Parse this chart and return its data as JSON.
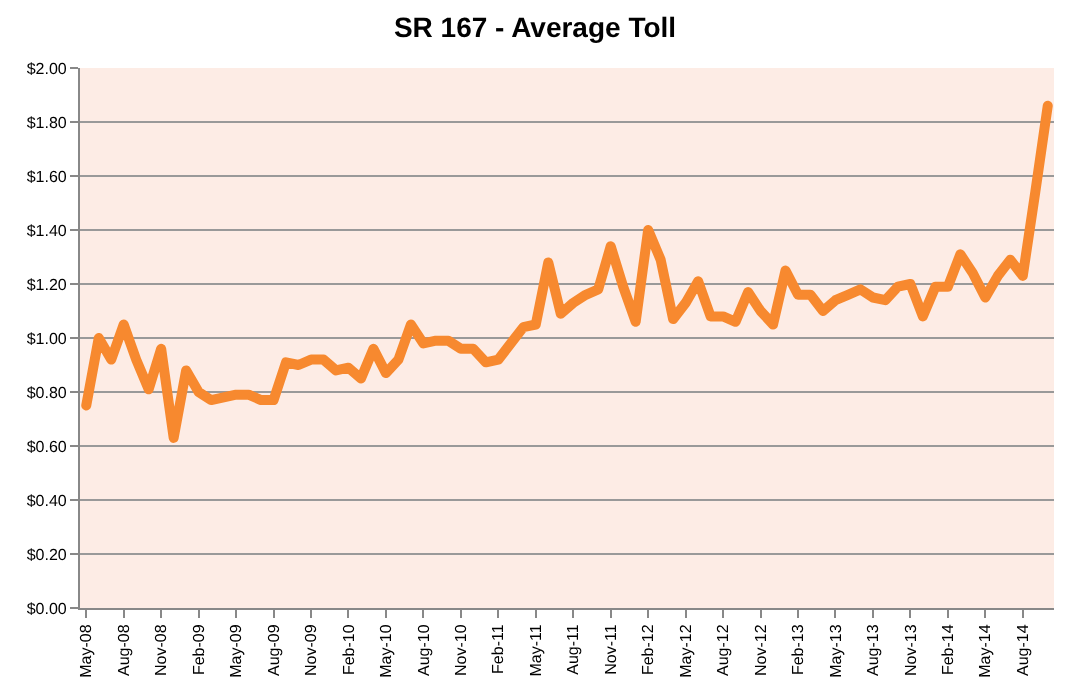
{
  "chart_data": {
    "type": "line",
    "title": "SR 167 - Average Toll",
    "categories": [
      "May-08",
      null,
      null,
      "Aug-08",
      null,
      null,
      "Nov-08",
      null,
      null,
      "Feb-09",
      null,
      null,
      "May-09",
      null,
      null,
      "Aug-09",
      null,
      null,
      "Nov-09",
      null,
      null,
      "Feb-10",
      null,
      null,
      "May-10",
      null,
      null,
      "Aug-10",
      null,
      null,
      "Nov-10",
      null,
      null,
      "Feb-11",
      null,
      null,
      "May-11",
      null,
      null,
      "Aug-11",
      null,
      null,
      "Nov-11",
      null,
      null,
      "Feb-12",
      null,
      null,
      "May-12",
      null,
      null,
      "Aug-12",
      null,
      null,
      "Nov-12",
      null,
      null,
      "Feb-13",
      null,
      null,
      "May-13",
      null,
      null,
      "Aug-13",
      null,
      null,
      "Nov-13",
      null,
      null,
      "Feb-14",
      null,
      null,
      "May-14",
      null,
      null,
      "Aug-14",
      null,
      null
    ],
    "series": [
      {
        "color": "#f7892f",
        "values": [
          0.75,
          1.0,
          0.92,
          1.05,
          0.92,
          0.81,
          0.96,
          0.63,
          0.88,
          0.8,
          0.77,
          0.78,
          0.79,
          0.79,
          0.77,
          0.77,
          0.91,
          0.9,
          0.92,
          0.92,
          0.88,
          0.89,
          0.85,
          0.96,
          0.87,
          0.92,
          1.05,
          0.98,
          0.99,
          0.99,
          0.96,
          0.96,
          0.91,
          0.92,
          0.98,
          1.04,
          1.05,
          1.28,
          1.09,
          1.13,
          1.16,
          1.18,
          1.34,
          1.19,
          1.06,
          1.4,
          1.29,
          1.07,
          1.13,
          1.21,
          1.08,
          1.08,
          1.06,
          1.17,
          1.1,
          1.05,
          1.25,
          1.16,
          1.16,
          1.1,
          1.14,
          1.16,
          1.18,
          1.15,
          1.14,
          1.19,
          1.2,
          1.08,
          1.19,
          1.19,
          1.31,
          1.24,
          1.15,
          1.23,
          1.29,
          1.23,
          1.54,
          1.86
        ]
      }
    ],
    "ylim": [
      0,
      2
    ],
    "yticks": [
      {
        "value": 0,
        "label": "$0.00"
      },
      {
        "value": 0.2,
        "label": "$0.20"
      },
      {
        "value": 0.4,
        "label": "$0.40"
      },
      {
        "value": 0.6,
        "label": "$0.60"
      },
      {
        "value": 0.8,
        "label": "$0.80"
      },
      {
        "value": 1.0,
        "label": "$1.00"
      },
      {
        "value": 1.2,
        "label": "$1.20"
      },
      {
        "value": 1.4,
        "label": "$1.40"
      },
      {
        "value": 1.6,
        "label": "$1.60"
      },
      {
        "value": 1.8,
        "label": "$1.80"
      },
      {
        "value": 2.0,
        "label": "$2.00"
      }
    ],
    "grid": "y",
    "marker": "none",
    "line_style": "solid"
  }
}
